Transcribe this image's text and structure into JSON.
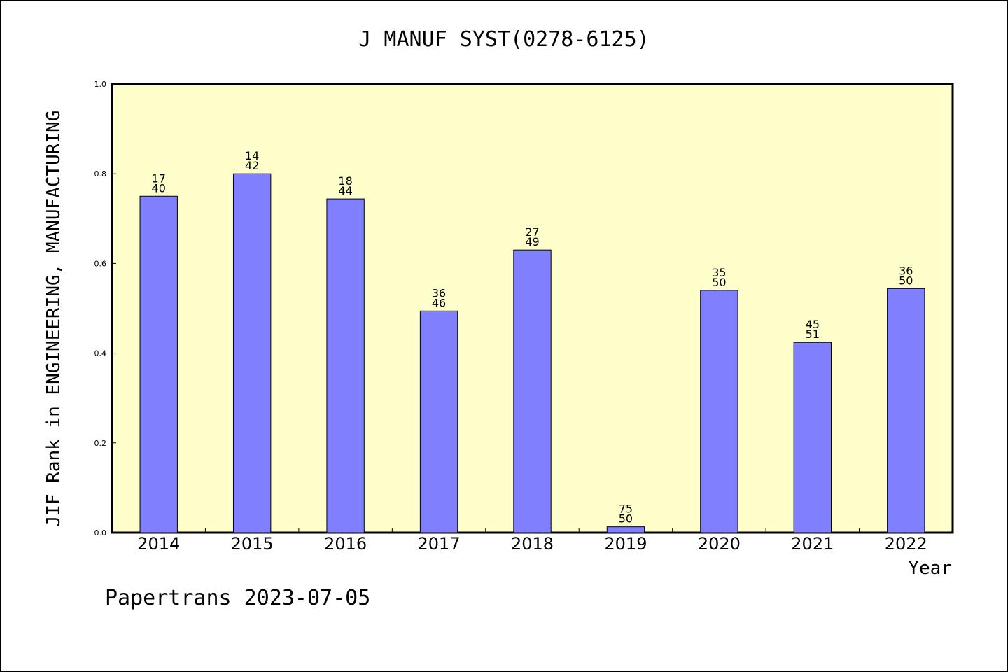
{
  "colors": {
    "plot_background": "#ffffcc",
    "bar_fill": "#8080ff",
    "bar_stroke": "#000000",
    "frame": "#000000"
  },
  "chart_data": {
    "type": "bar",
    "title": "J MANUF SYST(0278-6125)",
    "xlabel": "Year",
    "ylabel": "JIF Rank in ENGINEERING, MANUFACTURING",
    "ylim": [
      0,
      1.0
    ],
    "yticks": [
      "0.0",
      "0.2",
      "0.4",
      "0.6",
      "0.8",
      "1.0"
    ],
    "grid": false,
    "categories": [
      "2014",
      "2015",
      "2016",
      "2017",
      "2018",
      "2019",
      "2020",
      "2021",
      "2022"
    ],
    "values": [
      0.75,
      0.8,
      0.744,
      0.494,
      0.63,
      0.013,
      0.54,
      0.424,
      0.544
    ],
    "data_labels": [
      {
        "rank": "17",
        "total": "40"
      },
      {
        "rank": "14",
        "total": "42"
      },
      {
        "rank": "18",
        "total": "44"
      },
      {
        "rank": "36",
        "total": "46"
      },
      {
        "rank": "27",
        "total": "49"
      },
      {
        "rank": "75",
        "total": "50"
      },
      {
        "rank": "35",
        "total": "50"
      },
      {
        "rank": "45",
        "total": "51"
      },
      {
        "rank": "36",
        "total": "50"
      }
    ]
  },
  "footer": {
    "text": "Papertrans 2023-07-05"
  }
}
